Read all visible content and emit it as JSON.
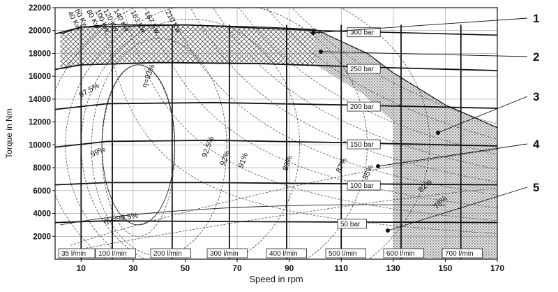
{
  "chart_data": {
    "type": "line",
    "xlabel": "Speed in rpm",
    "ylabel": "Torque in Nm",
    "xlim": [
      0,
      170
    ],
    "ylim": [
      0,
      22000
    ],
    "x_ticks": [
      10,
      30,
      50,
      70,
      90,
      110,
      130,
      150,
      170
    ],
    "y_ticks": [
      2000,
      4000,
      6000,
      8000,
      10000,
      12000,
      14000,
      16000,
      18000,
      20000,
      22000
    ],
    "power_lines": [
      {
        "label": "40 Kw",
        "kw": 40
      },
      {
        "label": "60 Kw",
        "kw": 60
      },
      {
        "label": "80 Kw",
        "kw": 80
      },
      {
        "label": "100 Kw",
        "kw": 100
      },
      {
        "label": "120 Kw",
        "kw": 120
      },
      {
        "label": "140 Kw",
        "kw": 140
      },
      {
        "label": "163 Kw",
        "kw": 163
      },
      {
        "label": "187 Kw",
        "kw": 187
      },
      {
        "label": "210 Kw",
        "kw": 210
      }
    ],
    "pressure_lines": [
      {
        "label": "300 bar",
        "x": [
          0,
          10,
          50,
          100,
          170
        ],
        "y": [
          19700,
          20300,
          20500,
          20000,
          19600
        ],
        "label_x": 115
      },
      {
        "label": "250 bar",
        "x": [
          0,
          10,
          40,
          80,
          120,
          170
        ],
        "y": [
          16600,
          17000,
          17200,
          17100,
          16800,
          16500
        ],
        "label_x": 115
      },
      {
        "label": "200 bar",
        "x": [
          0,
          20,
          60,
          110,
          170
        ],
        "y": [
          13100,
          13600,
          13700,
          13500,
          13200
        ],
        "label_x": 115
      },
      {
        "label": "150 bar",
        "x": [
          0,
          20,
          60,
          110,
          170
        ],
        "y": [
          9800,
          10300,
          10400,
          10200,
          9900
        ],
        "label_x": 115
      },
      {
        "label": "100 bar",
        "x": [
          0,
          20,
          60,
          110,
          170
        ],
        "y": [
          6500,
          6700,
          6700,
          6600,
          6500
        ],
        "label_x": 115
      },
      {
        "label": "50 bar",
        "x": [
          0,
          20,
          60,
          110,
          170
        ],
        "y": [
          3200,
          3350,
          3300,
          3250,
          3200
        ],
        "label_x": 115
      }
    ],
    "flow_lines": [
      {
        "label": "35 l/min",
        "rpm": 10
      },
      {
        "label": "100 l/min",
        "rpm": 22
      },
      {
        "label": "200 l/min",
        "rpm": 45
      },
      {
        "label": "300 l/min",
        "rpm": 67
      },
      {
        "label": "400 l/min",
        "rpm": 89
      },
      {
        "label": "500 l/min",
        "rpm": 110
      },
      {
        "label": "600 l/min",
        "rpm": 133
      },
      {
        "label": "700 l/min",
        "rpm": 156
      }
    ],
    "max_torque_curve": {
      "x": [
        2,
        10,
        20,
        50,
        80,
        100,
        120,
        130,
        150,
        170
      ],
      "y": [
        19700,
        20300,
        20500,
        20500,
        20300,
        20100,
        18000,
        16300,
        13500,
        11500
      ]
    },
    "efficiency_labels": [
      "97.5%",
      "η=93%",
      "99%",
      "92.5%",
      "92%",
      "91%",
      "89%",
      "87%",
      "85%",
      "82%",
      "78%",
      "ηv=99.5%"
    ],
    "callouts": [
      "1",
      "2",
      "3",
      "4",
      "5"
    ]
  }
}
